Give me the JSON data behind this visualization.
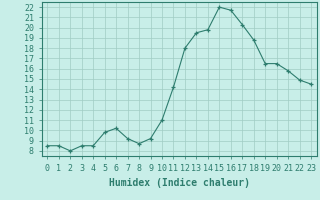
{
  "x": [
    0,
    1,
    2,
    3,
    4,
    5,
    6,
    7,
    8,
    9,
    10,
    11,
    12,
    13,
    14,
    15,
    16,
    17,
    18,
    19,
    20,
    21,
    22,
    23
  ],
  "y": [
    8.5,
    8.5,
    8.0,
    8.5,
    8.5,
    9.8,
    10.2,
    9.2,
    8.7,
    9.2,
    11.0,
    14.2,
    18.0,
    19.5,
    19.8,
    22.0,
    21.7,
    20.3,
    18.8,
    16.5,
    16.5,
    15.8,
    14.9,
    14.5
  ],
  "xlabel": "Humidex (Indice chaleur)",
  "line_color": "#2e7d6e",
  "marker": "+",
  "bg_color": "#c8eee8",
  "grid_color": "#a0ccc4",
  "xlim": [
    -0.5,
    23.5
  ],
  "ylim": [
    7.5,
    22.5
  ],
  "yticks": [
    8,
    9,
    10,
    11,
    12,
    13,
    14,
    15,
    16,
    17,
    18,
    19,
    20,
    21,
    22
  ],
  "xtick_labels": [
    "0",
    "1",
    "2",
    "3",
    "4",
    "5",
    "6",
    "7",
    "8",
    "9",
    "10",
    "11",
    "12",
    "13",
    "14",
    "15",
    "16",
    "17",
    "18",
    "19",
    "20",
    "21",
    "22",
    "23"
  ],
  "axis_fontsize": 7,
  "tick_fontsize": 6
}
